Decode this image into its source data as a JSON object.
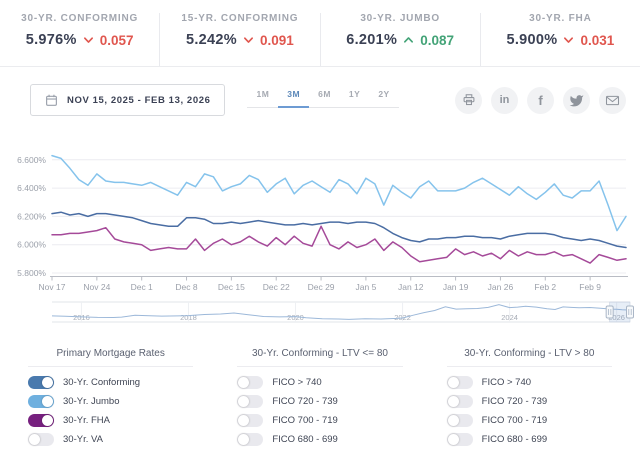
{
  "colors": {
    "negative": "#e0564e",
    "positive": "#43a377",
    "grid": "#ececf0",
    "axis": "#b9bcc4",
    "nav_line": "#9cb8d9",
    "brush_fill": "rgba(108,149,203,0.16)",
    "toggle_off": "#e9e9ee"
  },
  "stats": {
    "cards": [
      {
        "label": "30-YR. CONFORMING",
        "value": "5.976%",
        "change": "0.057",
        "direction": "down"
      },
      {
        "label": "15-YR. CONFORMING",
        "value": "5.242%",
        "change": "0.091",
        "direction": "down"
      },
      {
        "label": "30-YR. JUMBO",
        "value": "6.201%",
        "change": "0.087",
        "direction": "up"
      },
      {
        "label": "30-YR. FHA",
        "value": "5.900%",
        "change": "0.031",
        "direction": "down"
      }
    ]
  },
  "toolbar": {
    "date_range": "NOV 15, 2025 - FEB 13, 2026",
    "range_tabs": [
      {
        "label": "1M",
        "active": false
      },
      {
        "label": "3M",
        "active": true
      },
      {
        "label": "6M",
        "active": false
      },
      {
        "label": "1Y",
        "active": false
      },
      {
        "label": "2Y",
        "active": false
      }
    ],
    "share_icons": [
      "print",
      "linkedin",
      "facebook",
      "twitter",
      "email"
    ]
  },
  "chart_data": [
    {
      "type": "line",
      "title": "Daily mortgage rates, Nov 15 2025 - Feb 13 2026",
      "xlabel": "",
      "ylabel": "",
      "x_tick_labels": [
        "Nov 17",
        "Nov 24",
        "Dec 1",
        "Dec 8",
        "Dec 15",
        "Dec 22",
        "Dec 29",
        "Jan 5",
        "Jan 12",
        "Jan 19",
        "Jan 26",
        "Feb 2",
        "Feb 9"
      ],
      "y_ticks": [
        6.6,
        6.4,
        6.2,
        6.0,
        5.8
      ],
      "y_tick_labels": [
        "6.600%",
        "6.400%",
        "6.200%",
        "6.000%",
        "5.800%"
      ],
      "ylim": [
        5.76,
        6.72
      ],
      "grid": true,
      "points_per_week": 5,
      "series": [
        {
          "name": "30-Yr. Jumbo",
          "color": "#85c3ec",
          "values": [
            6.63,
            6.61,
            6.54,
            6.46,
            6.42,
            6.5,
            6.45,
            6.44,
            6.44,
            6.43,
            6.42,
            6.44,
            6.41,
            6.38,
            6.35,
            6.44,
            6.41,
            6.5,
            6.48,
            6.38,
            6.41,
            6.43,
            6.49,
            6.46,
            6.37,
            6.43,
            6.47,
            6.36,
            6.42,
            6.45,
            6.41,
            6.37,
            6.46,
            6.43,
            6.36,
            6.47,
            6.43,
            6.28,
            6.42,
            6.37,
            6.33,
            6.41,
            6.45,
            6.38,
            6.38,
            6.38,
            6.4,
            6.44,
            6.47,
            6.43,
            6.39,
            6.35,
            6.41,
            6.36,
            6.32,
            6.37,
            6.43,
            6.35,
            6.33,
            6.38,
            6.38,
            6.45,
            6.28,
            6.1,
            6.2
          ]
        },
        {
          "name": "30-Yr. Conforming",
          "color": "#4a6da3",
          "values": [
            6.22,
            6.23,
            6.21,
            6.22,
            6.2,
            6.22,
            6.22,
            6.21,
            6.2,
            6.19,
            6.17,
            6.15,
            6.14,
            6.13,
            6.13,
            6.19,
            6.19,
            6.18,
            6.15,
            6.15,
            6.16,
            6.15,
            6.16,
            6.17,
            6.16,
            6.15,
            6.14,
            6.14,
            6.15,
            6.14,
            6.15,
            6.16,
            6.16,
            6.15,
            6.16,
            6.16,
            6.15,
            6.12,
            6.08,
            6.05,
            6.03,
            6.02,
            6.04,
            6.04,
            6.05,
            6.05,
            6.06,
            6.06,
            6.05,
            6.05,
            6.04,
            6.06,
            6.07,
            6.08,
            6.08,
            6.08,
            6.07,
            6.05,
            6.04,
            6.03,
            6.04,
            6.03,
            6.01,
            5.99,
            5.98
          ]
        },
        {
          "name": "30-Yr. FHA",
          "color": "#a54a99",
          "values": [
            6.07,
            6.07,
            6.08,
            6.08,
            6.09,
            6.1,
            6.12,
            6.04,
            6.02,
            6.01,
            6.0,
            5.96,
            5.97,
            5.98,
            5.97,
            5.97,
            6.04,
            5.96,
            6.01,
            6.04,
            6.0,
            6.02,
            6.06,
            6.02,
            5.99,
            6.05,
            6.0,
            6.06,
            6.01,
            5.99,
            6.13,
            6.0,
            5.97,
            6.02,
            5.98,
            6.0,
            6.04,
            5.96,
            6.02,
            5.98,
            5.92,
            5.88,
            5.89,
            5.9,
            5.91,
            5.97,
            5.93,
            5.95,
            5.92,
            5.94,
            5.9,
            5.96,
            5.92,
            5.95,
            5.93,
            5.93,
            5.95,
            5.92,
            5.93,
            5.9,
            5.87,
            5.93,
            5.91,
            5.89,
            5.9
          ]
        }
      ]
    },
    {
      "type": "line",
      "role": "navigator",
      "title": "30-Yr. Conforming rate history 2016-2026",
      "year_labels": [
        "2016",
        "2018",
        "2020",
        "2022",
        "2024",
        "2026"
      ],
      "label_years": [
        2016,
        2018,
        2020,
        2022,
        2024,
        2026
      ],
      "xlim": [
        2015.45,
        2026.25
      ],
      "ylim": [
        2.2,
        8.4
      ],
      "x": [
        2015.45,
        2015.7,
        2016,
        2016.3,
        2016.6,
        2016.75,
        2017,
        2017.2,
        2017.5,
        2017.8,
        2018,
        2018.3,
        2018.6,
        2018.85,
        2019.1,
        2019.4,
        2019.7,
        2020,
        2020.2,
        2020.5,
        2020.8,
        2021,
        2021.3,
        2021.6,
        2021.9,
        2022,
        2022.2,
        2022.4,
        2022.6,
        2022.8,
        2023,
        2023.2,
        2023.4,
        2023.6,
        2023.8,
        2024,
        2024.15,
        2024.3,
        2024.5,
        2024.7,
        2024.85,
        2025,
        2025.15,
        2025.3,
        2025.5,
        2025.7,
        2025.9,
        2026,
        2026.1,
        2026.2
      ],
      "values": [
        3.95,
        3.85,
        3.6,
        3.45,
        3.4,
        3.55,
        4.2,
        4.05,
        3.9,
        3.95,
        4.05,
        4.45,
        4.6,
        4.95,
        4.4,
        3.75,
        3.6,
        3.7,
        3.3,
        3.0,
        2.9,
        2.75,
        3.0,
        2.9,
        3.1,
        3.25,
        4.2,
        5.1,
        5.8,
        7.1,
        6.3,
        6.4,
        6.5,
        6.9,
        7.8,
        6.8,
        7.0,
        7.3,
        7.0,
        6.4,
        6.15,
        7.05,
        6.9,
        6.75,
        6.85,
        6.6,
        6.3,
        6.25,
        6.1,
        6.0
      ],
      "selection": {
        "from_year": 2025.87,
        "to_year": 2026.25,
        "label": "NOV 15, 2025 - FEB 13, 2026"
      }
    }
  ],
  "legend": {
    "columns": [
      {
        "title": "Primary Mortgage Rates",
        "items": [
          {
            "label": "30-Yr. Conforming",
            "on": true,
            "color": "#4a7aae"
          },
          {
            "label": "30-Yr. Jumbo",
            "on": true,
            "color": "#6fb0df"
          },
          {
            "label": "30-Yr. FHA",
            "on": true,
            "color": "#77207f"
          },
          {
            "label": "30-Yr. VA",
            "on": false,
            "color": ""
          }
        ]
      },
      {
        "title": "30-Yr. Conforming - LTV <= 80",
        "items": [
          {
            "label": "FICO > 740",
            "on": false,
            "color": ""
          },
          {
            "label": "FICO 720 - 739",
            "on": false,
            "color": ""
          },
          {
            "label": "FICO 700 - 719",
            "on": false,
            "color": ""
          },
          {
            "label": "FICO 680 - 699",
            "on": false,
            "color": ""
          }
        ]
      },
      {
        "title": "30-Yr. Conforming - LTV > 80",
        "items": [
          {
            "label": "FICO > 740",
            "on": false,
            "color": ""
          },
          {
            "label": "FICO 720 - 739",
            "on": false,
            "color": ""
          },
          {
            "label": "FICO 700 - 719",
            "on": false,
            "color": ""
          },
          {
            "label": "FICO 680 - 699",
            "on": false,
            "color": ""
          }
        ]
      }
    ]
  }
}
